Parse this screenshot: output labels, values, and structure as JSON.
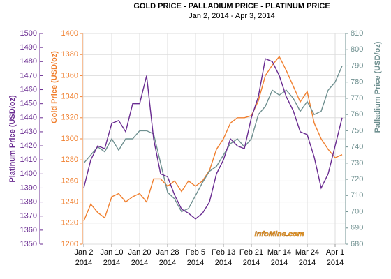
{
  "chart_data": {
    "type": "line",
    "title": "GOLD PRICE - PALLADIUM PRICE - PLATINUM PRICE",
    "subtitle": "Jan 2, 2014 - Apr 3, 2014",
    "ylabel": "Gold Price (USD/oz)",
    "y2label": "Palladium Price (USD/oz)",
    "y3label": "Platinum Price (USD/oz)",
    "watermark": "InfoMine.com",
    "categories": [
      "Jan 2\n2014",
      null,
      null,
      null,
      "Jan 10\n2014",
      null,
      null,
      null,
      "Jan 20\n2014",
      null,
      null,
      null,
      "Jan 28\n2014",
      null,
      null,
      null,
      "Feb 5\n2014",
      null,
      null,
      null,
      "Feb 13\n2014",
      null,
      null,
      null,
      "Feb 21\n2014",
      null,
      null,
      null,
      "Mar 14\n2014",
      null,
      null,
      null,
      "Mar 24\n2014",
      null,
      null,
      null,
      "Apr 1\n2014",
      null
    ],
    "series": [
      {
        "color": "#f08030",
        "axis": "y",
        "values": [
          1222,
          1238,
          1230,
          1225,
          1245,
          1248,
          1240,
          1245,
          1248,
          1240,
          1262,
          1262,
          1255,
          1260,
          1250,
          1260,
          1255,
          1260,
          1270,
          1290,
          1300,
          1315,
          1320,
          1320,
          1322,
          1336,
          1360,
          1370,
          1378,
          1365,
          1350,
          1335,
          1345,
          1315,
          1300,
          1290,
          1282,
          1285
        ]
      },
      {
        "color": "#6f9090",
        "axis": "y2",
        "values": [
          730,
          735,
          740,
          737,
          745,
          738,
          745,
          745,
          750,
          750,
          748,
          730,
          712,
          708,
          700,
          702,
          710,
          718,
          725,
          728,
          735,
          742,
          745,
          740,
          745,
          760,
          765,
          775,
          772,
          775,
          770,
          762,
          768,
          760,
          762,
          775,
          780,
          790
        ]
      },
      {
        "color": "#6a2c91",
        "axis": "y3",
        "values": [
          1390,
          1410,
          1420,
          1418,
          1436,
          1438,
          1430,
          1450,
          1450,
          1470,
          1425,
          1400,
          1398,
          1385,
          1375,
          1372,
          1368,
          1372,
          1380,
          1400,
          1410,
          1425,
          1420,
          1418,
          1440,
          1455,
          1482,
          1480,
          1470,
          1455,
          1445,
          1430,
          1428,
          1412,
          1390,
          1400,
          1420,
          1440
        ]
      }
    ],
    "ylim": [
      1200,
      1400
    ],
    "yticks": [
      1200,
      1220,
      1240,
      1260,
      1280,
      1300,
      1320,
      1340,
      1360,
      1380,
      1400
    ],
    "y2lim": [
      680,
      810
    ],
    "y2ticks": [
      680,
      690,
      700,
      710,
      720,
      730,
      740,
      750,
      760,
      770,
      780,
      790,
      800,
      810
    ],
    "y3lim": [
      1350,
      1500
    ],
    "y3ticks": [
      1350,
      1360,
      1370,
      1380,
      1390,
      1400,
      1410,
      1420,
      1430,
      1440,
      1450,
      1460,
      1470,
      1480,
      1490,
      1500
    ],
    "grid": true
  }
}
